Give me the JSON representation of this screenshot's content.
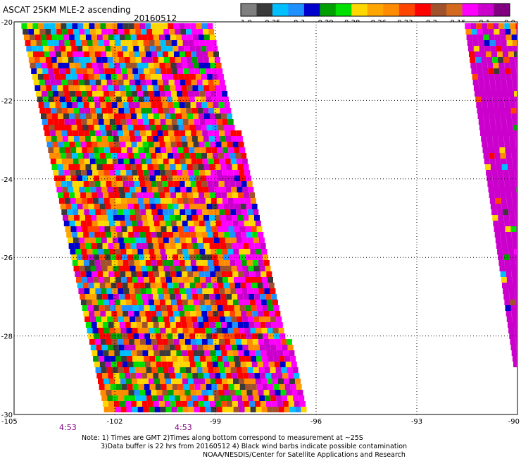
{
  "header": {
    "title": "ASCAT 25KM MLE-2 ascending",
    "date": "20160512"
  },
  "colorbar": {
    "colors": [
      "#7f7f7f",
      "#3a3a3a",
      "#00bfff",
      "#1e90ff",
      "#0000cd",
      "#00a000",
      "#00e000",
      "#ffd700",
      "#ffa500",
      "#ff8c00",
      "#ff4500",
      "#ff0000",
      "#a0522d",
      "#d2691e",
      "#ff00ff",
      "#cc00cc",
      "#800080"
    ],
    "labels": [
      "-1.0",
      "-0.35",
      "-0.3",
      "-0.29",
      "-0.28",
      "-0.26",
      "-0.23",
      "-0.2",
      "-0.15",
      "-0.1",
      "0.0"
    ]
  },
  "map": {
    "lon_range": [
      -105,
      -90
    ],
    "lat_range": [
      -30,
      -20
    ],
    "x_ticks": [
      "-105",
      "-102",
      "-99",
      "-96",
      "-93",
      "-90"
    ],
    "y_ticks": [
      "-20",
      "-22",
      "-24",
      "-26",
      "-28",
      "-30"
    ],
    "grid": "dotted"
  },
  "times": [
    {
      "label": "4:53",
      "color": "#800080"
    },
    {
      "label": "4:53",
      "color": "#800080"
    }
  ],
  "notes": {
    "line1": "Note: 1) Times are GMT 2)Times along bottom correspond to measurement at ~25S",
    "line2": "3)Data buffer is 22 hrs from 20160512 4) Black wind barbs indicate possible contamination",
    "line3": "NOAA/NESDIS/Center for Satellite Applications and Research"
  }
}
